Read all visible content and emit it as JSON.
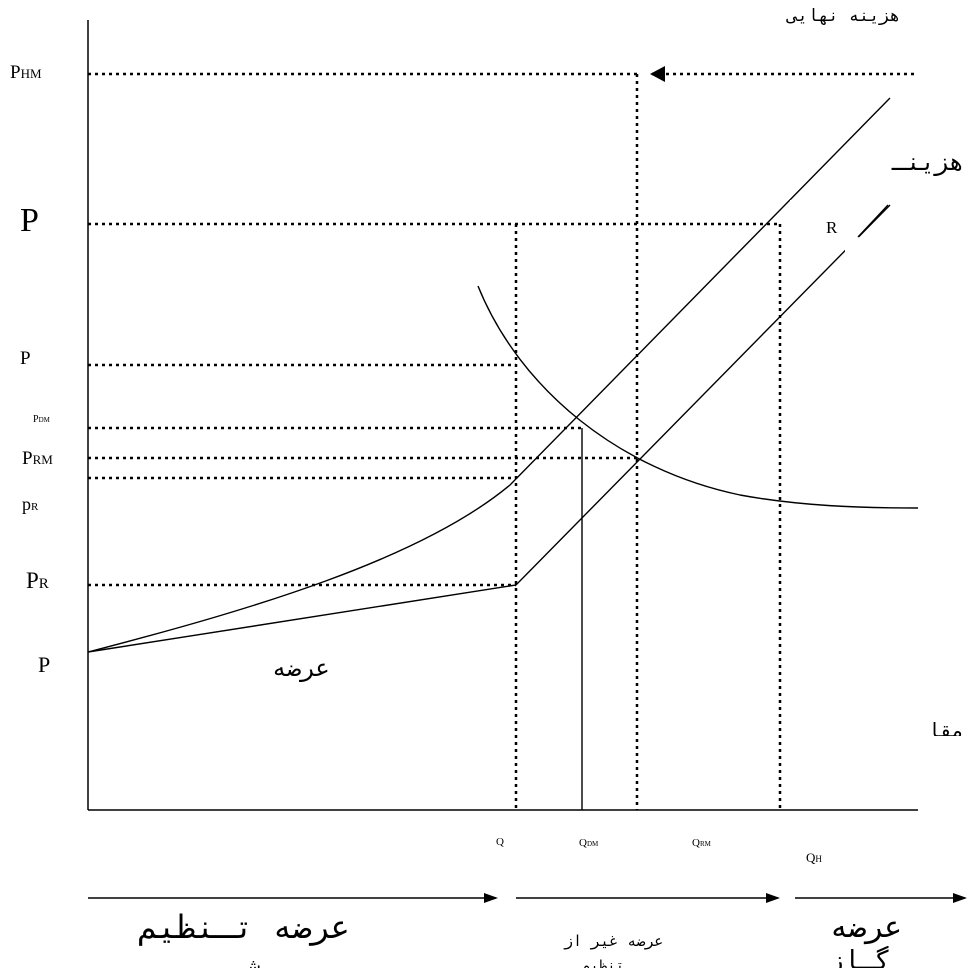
{
  "y_labels": {
    "p_hm_main": "P",
    "p_hm_sub": "HM",
    "p_big": "P",
    "p_mid": "P",
    "p_dm_main": "P",
    "p_dm_sub": "DM",
    "p_rm_main": "P",
    "p_rm_sub": "RM",
    "p_r_small_main": "p",
    "p_r_small_sub": "R",
    "p_r_main": "P",
    "p_r_sub": "R",
    "p_low": "P"
  },
  "x_labels": {
    "q": "Q",
    "q_dm_main": "Q",
    "q_dm_sub": "DM",
    "q_rm_main": "Q",
    "q_rm_sub": "RM",
    "q_h_main": "Q",
    "q_h_sub": "H"
  },
  "curve_labels": {
    "marginal_cost": "هزینه نهایی",
    "cost_partial": "هزینـ",
    "r_label": "R",
    "supply_curve": "عرضه",
    "side_partial": "مقا"
  },
  "bottom_labels": {
    "regulated_supply": "عرضه تـنظیم",
    "regulated_supply_second_line": "ش",
    "non_supply": "عرضه غیر از",
    "non_supply_second_line": "تنظیم",
    "right_supply": "عرضه",
    "right_supply_second_line": "گـاز"
  }
}
